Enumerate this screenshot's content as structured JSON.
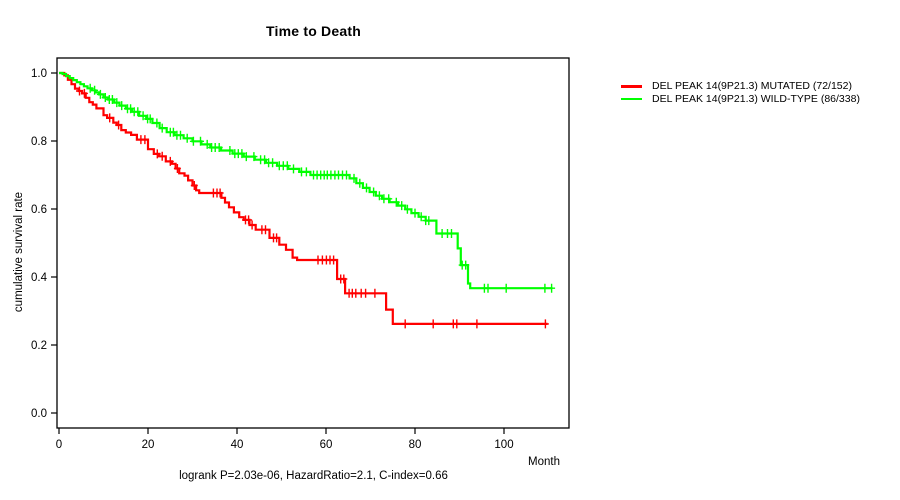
{
  "chart_data": {
    "type": "line",
    "variant": "kaplan-meier-step",
    "title": "Time to Death",
    "xlabel": "Month",
    "ylabel": "cumulative survival rate",
    "footnote": "logrank P=2.03e-06, HazardRatio=2.1, C-index=0.66",
    "x_ticks": [
      0,
      20,
      40,
      60,
      80,
      100
    ],
    "y_ticks": [
      "0.0",
      "0.2",
      "0.4",
      "0.6",
      "0.8",
      "1.0"
    ],
    "xlim": [
      0,
      115
    ],
    "ylim": [
      0.0,
      1.04
    ],
    "grid": false,
    "legend_position": "outside-right",
    "axis_color": "#000000",
    "series": [
      {
        "name": "DEL PEAK 14(9P21.3) MUTATED (72/152)",
        "color": "#ff0000",
        "end_month": 109.8,
        "steps": [
          [
            0,
            1.0
          ],
          [
            1.2,
            0.993
          ],
          [
            2.0,
            0.98
          ],
          [
            2.8,
            0.967
          ],
          [
            3.6,
            0.954
          ],
          [
            4.4,
            0.947
          ],
          [
            5.2,
            0.94
          ],
          [
            6.0,
            0.927
          ],
          [
            6.8,
            0.914
          ],
          [
            7.6,
            0.907
          ],
          [
            8.4,
            0.896
          ],
          [
            10.0,
            0.876
          ],
          [
            10.8,
            0.868
          ],
          [
            12.2,
            0.854
          ],
          [
            13.0,
            0.847
          ],
          [
            14.0,
            0.832
          ],
          [
            15.0,
            0.825
          ],
          [
            16.2,
            0.818
          ],
          [
            17.5,
            0.804
          ],
          [
            20.0,
            0.776
          ],
          [
            21.3,
            0.762
          ],
          [
            22.5,
            0.755
          ],
          [
            24.0,
            0.74
          ],
          [
            25.4,
            0.733
          ],
          [
            26.2,
            0.719
          ],
          [
            27.0,
            0.705
          ],
          [
            28.2,
            0.698
          ],
          [
            29.0,
            0.684
          ],
          [
            30.0,
            0.669
          ],
          [
            30.8,
            0.655
          ],
          [
            31.5,
            0.647
          ],
          [
            36.5,
            0.633
          ],
          [
            37.3,
            0.619
          ],
          [
            38.2,
            0.605
          ],
          [
            39.3,
            0.59
          ],
          [
            40.5,
            0.576
          ],
          [
            41.5,
            0.568
          ],
          [
            42.8,
            0.553
          ],
          [
            44.2,
            0.539
          ],
          [
            47.3,
            0.515
          ],
          [
            49.5,
            0.495
          ],
          [
            51.0,
            0.48
          ],
          [
            52.5,
            0.457
          ],
          [
            53.5,
            0.45
          ],
          [
            62.5,
            0.394
          ],
          [
            64.3,
            0.352
          ],
          [
            73.5,
            0.304
          ],
          [
            75.0,
            0.262
          ]
        ],
        "censor_months": [
          4.6,
          5.7,
          11.4,
          13.4,
          18.4,
          19.3,
          22.1,
          23.2,
          25.0,
          26.6,
          30.4,
          34.7,
          35.5,
          36.2,
          41.9,
          42.6,
          43.4,
          45.6,
          46.4,
          48.2,
          48.9,
          58.2,
          59.2,
          60.1,
          60.9,
          61.7,
          63.3,
          64.0,
          65.2,
          65.9,
          66.7,
          67.9,
          68.9,
          71.0,
          77.8,
          84.1,
          88.6,
          89.4,
          93.9,
          109.3
        ]
      },
      {
        "name": "DEL PEAK 14(9P21.3) WILD-TYPE (86/338)",
        "color": "#00ff00",
        "end_month": 110.9,
        "steps": [
          [
            0,
            1.0
          ],
          [
            0.8,
            0.997
          ],
          [
            1.6,
            0.991
          ],
          [
            2.4,
            0.985
          ],
          [
            3.2,
            0.979
          ],
          [
            4.0,
            0.973
          ],
          [
            4.8,
            0.967
          ],
          [
            5.6,
            0.961
          ],
          [
            6.4,
            0.955
          ],
          [
            7.4,
            0.949
          ],
          [
            8.2,
            0.943
          ],
          [
            9.0,
            0.937
          ],
          [
            10.0,
            0.928
          ],
          [
            11.0,
            0.922
          ],
          [
            12.4,
            0.913
          ],
          [
            13.6,
            0.904
          ],
          [
            15.0,
            0.895
          ],
          [
            16.4,
            0.886
          ],
          [
            18.0,
            0.874
          ],
          [
            19.6,
            0.865
          ],
          [
            21.0,
            0.853
          ],
          [
            22.6,
            0.838
          ],
          [
            24.2,
            0.826
          ],
          [
            26.0,
            0.817
          ],
          [
            28.0,
            0.808
          ],
          [
            30.0,
            0.799
          ],
          [
            32.0,
            0.79
          ],
          [
            34.0,
            0.781
          ],
          [
            36.4,
            0.772
          ],
          [
            39.0,
            0.763
          ],
          [
            41.5,
            0.754
          ],
          [
            44.0,
            0.745
          ],
          [
            46.5,
            0.736
          ],
          [
            49.0,
            0.727
          ],
          [
            51.5,
            0.718
          ],
          [
            54.0,
            0.709
          ],
          [
            56.5,
            0.7
          ],
          [
            65.3,
            0.69
          ],
          [
            66.8,
            0.676
          ],
          [
            68.3,
            0.662
          ],
          [
            69.8,
            0.65
          ],
          [
            71.2,
            0.639
          ],
          [
            72.6,
            0.63
          ],
          [
            74.3,
            0.62
          ],
          [
            76.2,
            0.61
          ],
          [
            77.8,
            0.599
          ],
          [
            79.2,
            0.588
          ],
          [
            80.8,
            0.577
          ],
          [
            82.4,
            0.566
          ],
          [
            84.8,
            0.528
          ],
          [
            89.6,
            0.484
          ],
          [
            90.3,
            0.435
          ],
          [
            91.9,
            0.381
          ],
          [
            92.4,
            0.367
          ]
        ],
        "censor_months": [
          7.0,
          8.0,
          9.3,
          10.4,
          11.3,
          12.0,
          13.0,
          14.1,
          15.4,
          16.1,
          16.9,
          17.7,
          18.9,
          19.9,
          20.5,
          22.0,
          23.2,
          25.0,
          25.7,
          26.5,
          27.3,
          28.8,
          30.2,
          31.8,
          33.3,
          34.3,
          35.1,
          36.0,
          38.4,
          39.5,
          40.3,
          41.1,
          42.1,
          43.8,
          45.3,
          46.2,
          47.1,
          48.0,
          49.5,
          50.4,
          51.3,
          52.7,
          54.5,
          55.6,
          57.2,
          58.0,
          58.8,
          59.6,
          60.3,
          61.1,
          62.0,
          62.8,
          63.7,
          64.6,
          66.3,
          67.6,
          69.1,
          70.7,
          72.0,
          73.0,
          74.1,
          75.8,
          77.0,
          78.3,
          80.0,
          81.4,
          82.4,
          83.1,
          86.1,
          87.3,
          88.2,
          90.6,
          91.4,
          95.6,
          96.4,
          100.5,
          109.2,
          110.7
        ]
      }
    ]
  }
}
